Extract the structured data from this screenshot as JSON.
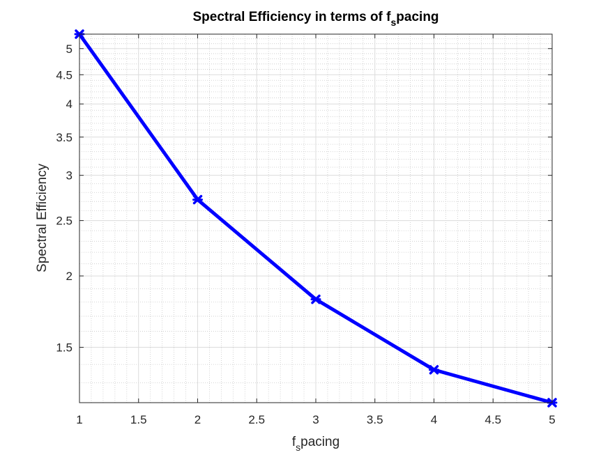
{
  "chart_data": {
    "type": "line",
    "title_main": "Spectral Efficiency in terms of f",
    "title_sub": "s",
    "title_tail": "pacing",
    "xlabel_main": "f",
    "xlabel_sub": "s",
    "xlabel_tail": "pacing",
    "ylabel": "Spectral Efficiency",
    "x_scale": "linear",
    "y_scale": "log",
    "xlim": [
      1,
      5
    ],
    "ylim": [
      1.2,
      5.3
    ],
    "grid": true,
    "minor_grid": true,
    "xticks": [
      1,
      1.5,
      2,
      2.5,
      3,
      3.5,
      4,
      4.5,
      5
    ],
    "xtick_labels": [
      "1",
      "1.5",
      "2",
      "2.5",
      "3",
      "3.5",
      "4",
      "4.5",
      "5"
    ],
    "yticks": [
      1.5,
      2,
      2.5,
      3,
      3.5,
      4,
      4.5,
      5
    ],
    "ytick_labels": [
      "1.5",
      "2",
      "2.5",
      "3",
      "3.5",
      "4",
      "4.5",
      "5"
    ],
    "series": [
      {
        "color": "#0000ff",
        "marker": "x",
        "x": [
          1,
          2,
          3,
          4,
          5
        ],
        "y": [
          5.3,
          2.72,
          1.82,
          1.37,
          1.2
        ]
      }
    ]
  }
}
